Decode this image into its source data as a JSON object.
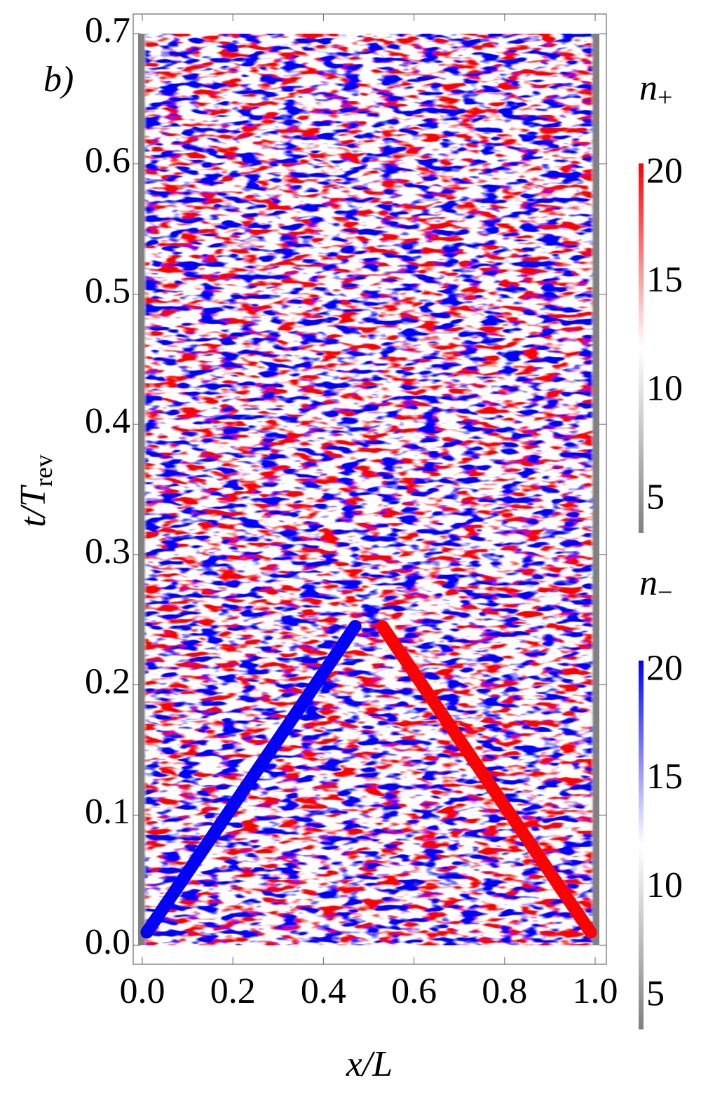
{
  "chart_data": {
    "type": "density",
    "panel_label": "b)",
    "xlabel": "x/L",
    "ylabel": {
      "main": "t/T",
      "sub": "rev"
    },
    "xlim": [
      0,
      1
    ],
    "ylim": [
      0,
      0.7
    ],
    "xticks": [
      {
        "value": 0,
        "label": "0.0"
      },
      0.2,
      0.4,
      0.6,
      0.8,
      {
        "value": 1,
        "label": "1.0"
      }
    ],
    "yticks": [
      {
        "value": 0,
        "label": "0.0"
      },
      0.1,
      0.2,
      0.3,
      0.4,
      0.5,
      0.6,
      0.7
    ],
    "series": [
      {
        "color": "#0000ff",
        "x": [
          0.01,
          0.47
        ],
        "values": [
          0.01,
          0.245
        ]
      },
      {
        "color": "#ff0000",
        "x": [
          0.99,
          0.53
        ],
        "values": [
          0.01,
          0.245
        ]
      }
    ],
    "colorbars": [
      {
        "label": {
          "main": "n",
          "sub": "+"
        },
        "lim": [
          3.5,
          20.5
        ],
        "ticks": [
          5,
          10,
          15,
          20
        ],
        "colors": [
          "#808080",
          "#ffffff",
          "#ff0000"
        ]
      },
      {
        "label": {
          "main": "n",
          "sub": "−"
        },
        "lim": [
          3.5,
          20.5
        ],
        "ticks": [
          5,
          10,
          15,
          20
        ],
        "colors": [
          "#808080",
          "#ffffff",
          "#0000ff"
        ]
      }
    ]
  }
}
